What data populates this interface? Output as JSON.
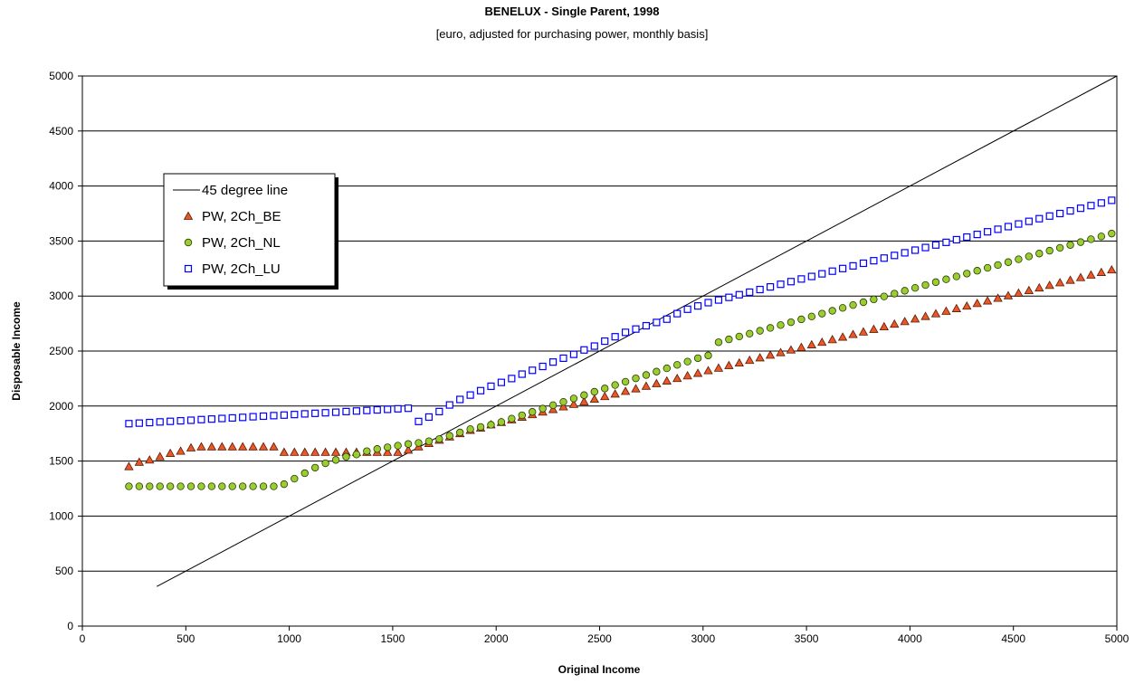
{
  "chart_data": {
    "type": "scatter",
    "title": "BENELUX - Single Parent, 1998",
    "subtitle": "[euro, adjusted for purchasing power, monthly basis]",
    "x_label": "Original Income",
    "y_label": "Disposable  Income",
    "xlim": [
      0,
      5000
    ],
    "xticks": [
      0,
      500,
      1000,
      1500,
      2000,
      2500,
      3000,
      3500,
      4000,
      4500,
      5000
    ],
    "ylim": [
      0,
      5000
    ],
    "yticks": [
      0,
      500,
      1000,
      1500,
      2000,
      2500,
      3000,
      3500,
      4000,
      4500,
      5000
    ],
    "grid": true,
    "legend": "upper left",
    "x": [
      225,
      275,
      325,
      375,
      425,
      475,
      525,
      575,
      625,
      675,
      725,
      775,
      825,
      875,
      925,
      975,
      1025,
      1075,
      1125,
      1175,
      1225,
      1275,
      1325,
      1375,
      1425,
      1475,
      1525,
      1575,
      1625,
      1675,
      1725,
      1775,
      1825,
      1875,
      1925,
      1975,
      2025,
      2075,
      2125,
      2175,
      2225,
      2275,
      2325,
      2375,
      2425,
      2475,
      2525,
      2575,
      2625,
      2675,
      2725,
      2775,
      2825,
      2875,
      2925,
      2975,
      3025,
      3075,
      3125,
      3175,
      3225,
      3275,
      3325,
      3375,
      3425,
      3475,
      3525,
      3575,
      3625,
      3675,
      3725,
      3775,
      3825,
      3875,
      3925,
      3975,
      4025,
      4075,
      4125,
      4175,
      4225,
      4275,
      4325,
      4375,
      4425,
      4475,
      4525,
      4575,
      4625,
      4675,
      4725,
      4775,
      4825,
      4875,
      4925,
      4975
    ],
    "series": [
      {
        "name": "45 degree line",
        "kind": "line",
        "color": "#000000",
        "x": [
          360,
          5000
        ],
        "values": [
          360,
          5000
        ]
      },
      {
        "name": "PW, 2Ch_BE",
        "kind": "marker",
        "marker": "triangle",
        "color": "#e8582a",
        "values": [
          1450,
          1490,
          1510,
          1540,
          1570,
          1590,
          1620,
          1630,
          1630,
          1630,
          1630,
          1630,
          1630,
          1630,
          1630,
          1580,
          1580,
          1580,
          1580,
          1580,
          1580,
          1580,
          1580,
          1580,
          1580,
          1580,
          1580,
          1600,
          1630,
          1660,
          1690,
          1720,
          1750,
          1780,
          1800,
          1830,
          1852,
          1875,
          1899,
          1922,
          1946,
          1969,
          1993,
          2016,
          2040,
          2063,
          2087,
          2110,
          2134,
          2157,
          2181,
          2204,
          2228,
          2251,
          2275,
          2298,
          2322,
          2345,
          2369,
          2392,
          2416,
          2439,
          2463,
          2486,
          2510,
          2533,
          2557,
          2580,
          2604,
          2627,
          2651,
          2674,
          2698,
          2721,
          2745,
          2768,
          2792,
          2815,
          2839,
          2862,
          2886,
          2909,
          2933,
          2956,
          2980,
          3003,
          3027,
          3050,
          3074,
          3097,
          3121,
          3144,
          3168,
          3191,
          3215,
          3238
        ]
      },
      {
        "name": "PW, 2Ch_NL",
        "kind": "marker",
        "marker": "circle",
        "color": "#9acd32",
        "values": [
          1270,
          1270,
          1270,
          1270,
          1270,
          1270,
          1270,
          1270,
          1270,
          1270,
          1270,
          1270,
          1270,
          1270,
          1270,
          1290,
          1340,
          1390,
          1440,
          1480,
          1510,
          1540,
          1560,
          1590,
          1610,
          1625,
          1640,
          1655,
          1665,
          1680,
          1700,
          1730,
          1760,
          1790,
          1810,
          1830,
          1855,
          1886,
          1916,
          1947,
          1977,
          2008,
          2038,
          2069,
          2099,
          2130,
          2160,
          2191,
          2221,
          2252,
          2282,
          2313,
          2343,
          2374,
          2404,
          2435,
          2460,
          2580,
          2606,
          2632,
          2658,
          2684,
          2710,
          2736,
          2762,
          2788,
          2814,
          2840,
          2866,
          2892,
          2918,
          2944,
          2970,
          2996,
          3022,
          3048,
          3074,
          3100,
          3126,
          3152,
          3178,
          3204,
          3230,
          3256,
          3282,
          3308,
          3334,
          3360,
          3386,
          3412,
          3438,
          3464,
          3490,
          3516,
          3542,
          3568
        ]
      },
      {
        "name": "PW, 2Ch_LU",
        "kind": "marker",
        "marker": "square",
        "color": "#0000ff",
        "values": [
          1840,
          1845,
          1850,
          1856,
          1861,
          1866,
          1871,
          1877,
          1882,
          1887,
          1892,
          1897,
          1903,
          1908,
          1913,
          1918,
          1923,
          1929,
          1934,
          1939,
          1944,
          1950,
          1955,
          1960,
          1965,
          1970,
          1975,
          1980,
          1860,
          1900,
          1950,
          2010,
          2060,
          2100,
          2140,
          2180,
          2215,
          2250,
          2290,
          2325,
          2360,
          2400,
          2435,
          2470,
          2510,
          2545,
          2590,
          2630,
          2670,
          2700,
          2730,
          2760,
          2790,
          2840,
          2880,
          2910,
          2940,
          2964,
          2988,
          3012,
          3035,
          3059,
          3083,
          3107,
          3131,
          3155,
          3178,
          3202,
          3226,
          3250,
          3274,
          3298,
          3321,
          3345,
          3369,
          3393,
          3417,
          3441,
          3464,
          3488,
          3512,
          3536,
          3560,
          3584,
          3607,
          3631,
          3655,
          3679,
          3703,
          3727,
          3750,
          3774,
          3798,
          3822,
          3846,
          3870
        ]
      }
    ]
  }
}
